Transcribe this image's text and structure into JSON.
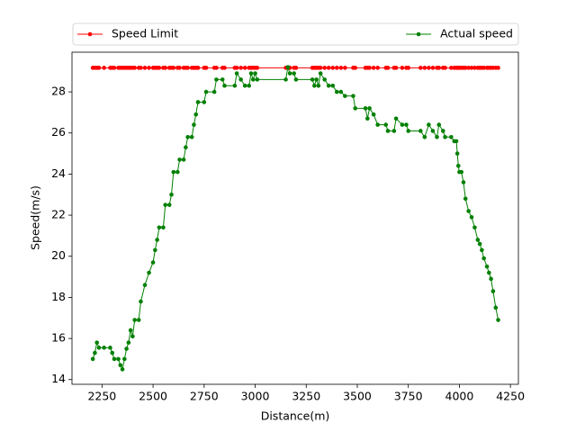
{
  "chart_data": {
    "type": "line",
    "xlabel": "Distance(m)",
    "ylabel": "Speed(m/s)",
    "x": [
      2205,
      2215,
      2225,
      2235,
      2260,
      2290,
      2300,
      2310,
      2330,
      2340,
      2350,
      2360,
      2370,
      2380,
      2390,
      2400,
      2410,
      2430,
      2440,
      2460,
      2480,
      2500,
      2510,
      2520,
      2530,
      2550,
      2560,
      2580,
      2590,
      2600,
      2620,
      2630,
      2650,
      2660,
      2670,
      2690,
      2700,
      2710,
      2720,
      2750,
      2760,
      2800,
      2810,
      2840,
      2850,
      2900,
      2910,
      2930,
      2950,
      2970,
      2980,
      2990,
      3000,
      3010,
      3150,
      3160,
      3170,
      3190,
      3200,
      3280,
      3290,
      3300,
      3310,
      3320,
      3340,
      3360,
      3380,
      3400,
      3420,
      3440,
      3480,
      3490,
      3540,
      3550,
      3560,
      3580,
      3600,
      3640,
      3650,
      3680,
      3690,
      3720,
      3740,
      3750,
      3810,
      3830,
      3850,
      3870,
      3890,
      3900,
      3920,
      3930,
      3960,
      3975,
      3985,
      3990,
      3995,
      4000,
      4010,
      4020,
      4030,
      4045,
      4060,
      4075,
      4090,
      4100,
      4110,
      4120,
      4135,
      4145,
      4155,
      4165,
      4178,
      4190
    ],
    "series": [
      {
        "name": "Speed Limit",
        "color": "#ff0000",
        "values": [
          29.17,
          29.17,
          29.17,
          29.17,
          29.17,
          29.17,
          29.17,
          29.17,
          29.17,
          29.17,
          29.17,
          29.17,
          29.17,
          29.17,
          29.17,
          29.17,
          29.17,
          29.17,
          29.17,
          29.17,
          29.17,
          29.17,
          29.17,
          29.17,
          29.17,
          29.17,
          29.17,
          29.17,
          29.17,
          29.17,
          29.17,
          29.17,
          29.17,
          29.17,
          29.17,
          29.17,
          29.17,
          29.17,
          29.17,
          29.17,
          29.17,
          29.17,
          29.17,
          29.17,
          29.17,
          29.17,
          29.17,
          29.17,
          29.17,
          29.17,
          29.17,
          29.17,
          29.17,
          29.17,
          29.17,
          29.17,
          29.17,
          29.17,
          29.17,
          29.17,
          29.17,
          29.17,
          29.17,
          29.17,
          29.17,
          29.17,
          29.17,
          29.17,
          29.17,
          29.17,
          29.17,
          29.17,
          29.17,
          29.17,
          29.17,
          29.17,
          29.17,
          29.17,
          29.17,
          29.17,
          29.17,
          29.17,
          29.17,
          29.17,
          29.17,
          29.17,
          29.17,
          29.17,
          29.17,
          29.17,
          29.17,
          29.17,
          29.17,
          29.17,
          29.17,
          29.17,
          29.17,
          29.17,
          29.17,
          29.17,
          29.17,
          29.17,
          29.17,
          29.17,
          29.17,
          29.17,
          29.17,
          29.17,
          29.17,
          29.17,
          29.17,
          29.17,
          29.17,
          29.17
        ]
      },
      {
        "name": "Actual speed",
        "color": "#008000",
        "values": [
          15.0,
          15.3,
          15.8,
          15.55,
          15.55,
          15.55,
          15.3,
          15.0,
          15.0,
          14.7,
          14.5,
          15.0,
          15.5,
          15.8,
          16.4,
          16.1,
          16.9,
          16.9,
          17.8,
          18.6,
          19.2,
          19.7,
          20.3,
          20.8,
          21.4,
          21.4,
          22.5,
          22.5,
          23.0,
          24.1,
          24.1,
          24.7,
          24.7,
          25.3,
          25.8,
          25.8,
          26.4,
          26.9,
          27.5,
          27.5,
          28.0,
          28.0,
          28.6,
          28.6,
          28.3,
          28.3,
          28.9,
          28.6,
          28.3,
          28.3,
          28.9,
          28.6,
          28.9,
          28.6,
          28.6,
          29.2,
          28.9,
          28.9,
          28.6,
          28.6,
          28.3,
          28.6,
          28.3,
          28.9,
          28.6,
          28.3,
          28.3,
          28.0,
          28.0,
          27.8,
          27.8,
          27.2,
          27.2,
          26.7,
          27.2,
          26.9,
          26.4,
          26.4,
          26.1,
          26.1,
          26.7,
          26.4,
          26.4,
          26.1,
          26.1,
          25.8,
          26.4,
          26.1,
          25.8,
          26.4,
          26.1,
          25.8,
          25.8,
          25.6,
          25.6,
          25.0,
          24.4,
          24.1,
          24.1,
          23.6,
          22.8,
          22.2,
          21.9,
          21.4,
          20.8,
          20.6,
          20.3,
          19.9,
          19.5,
          19.2,
          18.9,
          18.3,
          17.5,
          16.9
        ]
      }
    ],
    "xlim": [
      2103,
      4289
    ],
    "ylim": [
      13.77,
      29.93
    ],
    "xticks": [
      2250,
      2500,
      2750,
      3000,
      3250,
      3500,
      3750,
      4000,
      4250
    ],
    "yticks": [
      14,
      16,
      18,
      20,
      22,
      24,
      26,
      28
    ],
    "legend": "top"
  }
}
